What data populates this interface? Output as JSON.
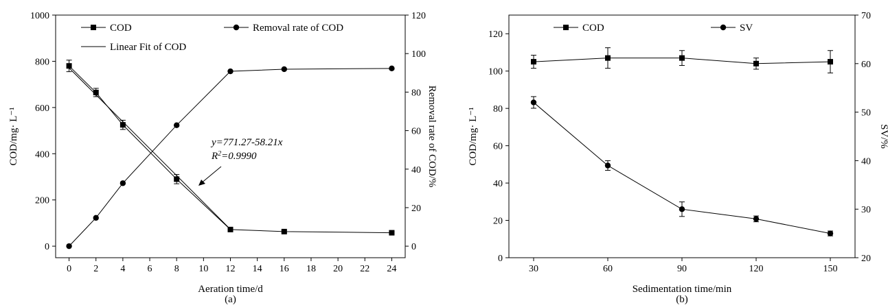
{
  "chart_data": [
    {
      "type": "line",
      "panel_label": "(a)",
      "xlabel": "Aeration time/d",
      "ylabel_left": "COD/mg· L⁻¹",
      "ylabel_right": "Removal rate of COD/%",
      "xlim": [
        -1,
        25
      ],
      "ylim_left": [
        -50,
        1000
      ],
      "ylim_right": [
        -6,
        120
      ],
      "xticks": [
        0,
        2,
        4,
        6,
        8,
        10,
        12,
        14,
        16,
        18,
        20,
        22,
        24
      ],
      "yticks_left": [
        0,
        200,
        400,
        600,
        800,
        1000
      ],
      "yticks_right": [
        0,
        20,
        40,
        60,
        80,
        100,
        120
      ],
      "series": [
        {
          "name": "COD",
          "axis": "left",
          "marker": "square",
          "x": [
            0,
            2,
            4,
            8,
            12,
            16,
            24
          ],
          "y": [
            780,
            665,
            525,
            290,
            72,
            63,
            58
          ],
          "err": [
            25,
            18,
            20,
            20,
            6,
            5,
            4
          ]
        },
        {
          "name": "Removal rate of COD",
          "axis": "right",
          "marker": "circle",
          "x": [
            0,
            2,
            4,
            8,
            12,
            16,
            24
          ],
          "y": [
            0,
            14.7,
            32.7,
            62.8,
            90.8,
            91.9,
            92.3
          ],
          "err": [
            0,
            0,
            0,
            0,
            0,
            0,
            0
          ]
        },
        {
          "name": "Linear Fit of COD",
          "axis": "left",
          "marker": "none",
          "x": [
            0,
            12
          ],
          "y": [
            771.27,
            72.75
          ]
        }
      ],
      "annotation": {
        "equation": "y=771.27-58.21x",
        "r2_prefix": "R",
        "r2_sup": "2",
        "r2_value": "=0.9990"
      },
      "legend": [
        "COD",
        "Removal rate of COD",
        "Linear Fit of COD"
      ]
    },
    {
      "type": "line",
      "panel_label": "(b)",
      "xlabel": "Sedimentation time/min",
      "ylabel_left": "COD/mg· L⁻¹",
      "ylabel_right": "SV/%",
      "xlim": [
        20,
        160
      ],
      "ylim_left": [
        0,
        130
      ],
      "ylim_right": [
        20,
        70
      ],
      "xticks": [
        30,
        60,
        90,
        120,
        150
      ],
      "yticks_left": [
        0,
        20,
        40,
        60,
        80,
        100,
        120
      ],
      "yticks_right": [
        20,
        30,
        40,
        50,
        60,
        70
      ],
      "series": [
        {
          "name": "COD",
          "axis": "left",
          "marker": "square",
          "x": [
            30,
            60,
            90,
            120,
            150
          ],
          "y": [
            105,
            107,
            107,
            104,
            105
          ],
          "err": [
            3.5,
            5.5,
            4,
            3,
            6
          ]
        },
        {
          "name": "SV",
          "axis": "right",
          "marker": "circle",
          "x": [
            30,
            60,
            90,
            120,
            150
          ],
          "y": [
            52,
            39,
            30,
            28,
            25
          ],
          "err": [
            1.2,
            1,
            1.5,
            0.6,
            0.5
          ]
        }
      ],
      "legend": [
        "COD",
        "SV"
      ]
    }
  ]
}
